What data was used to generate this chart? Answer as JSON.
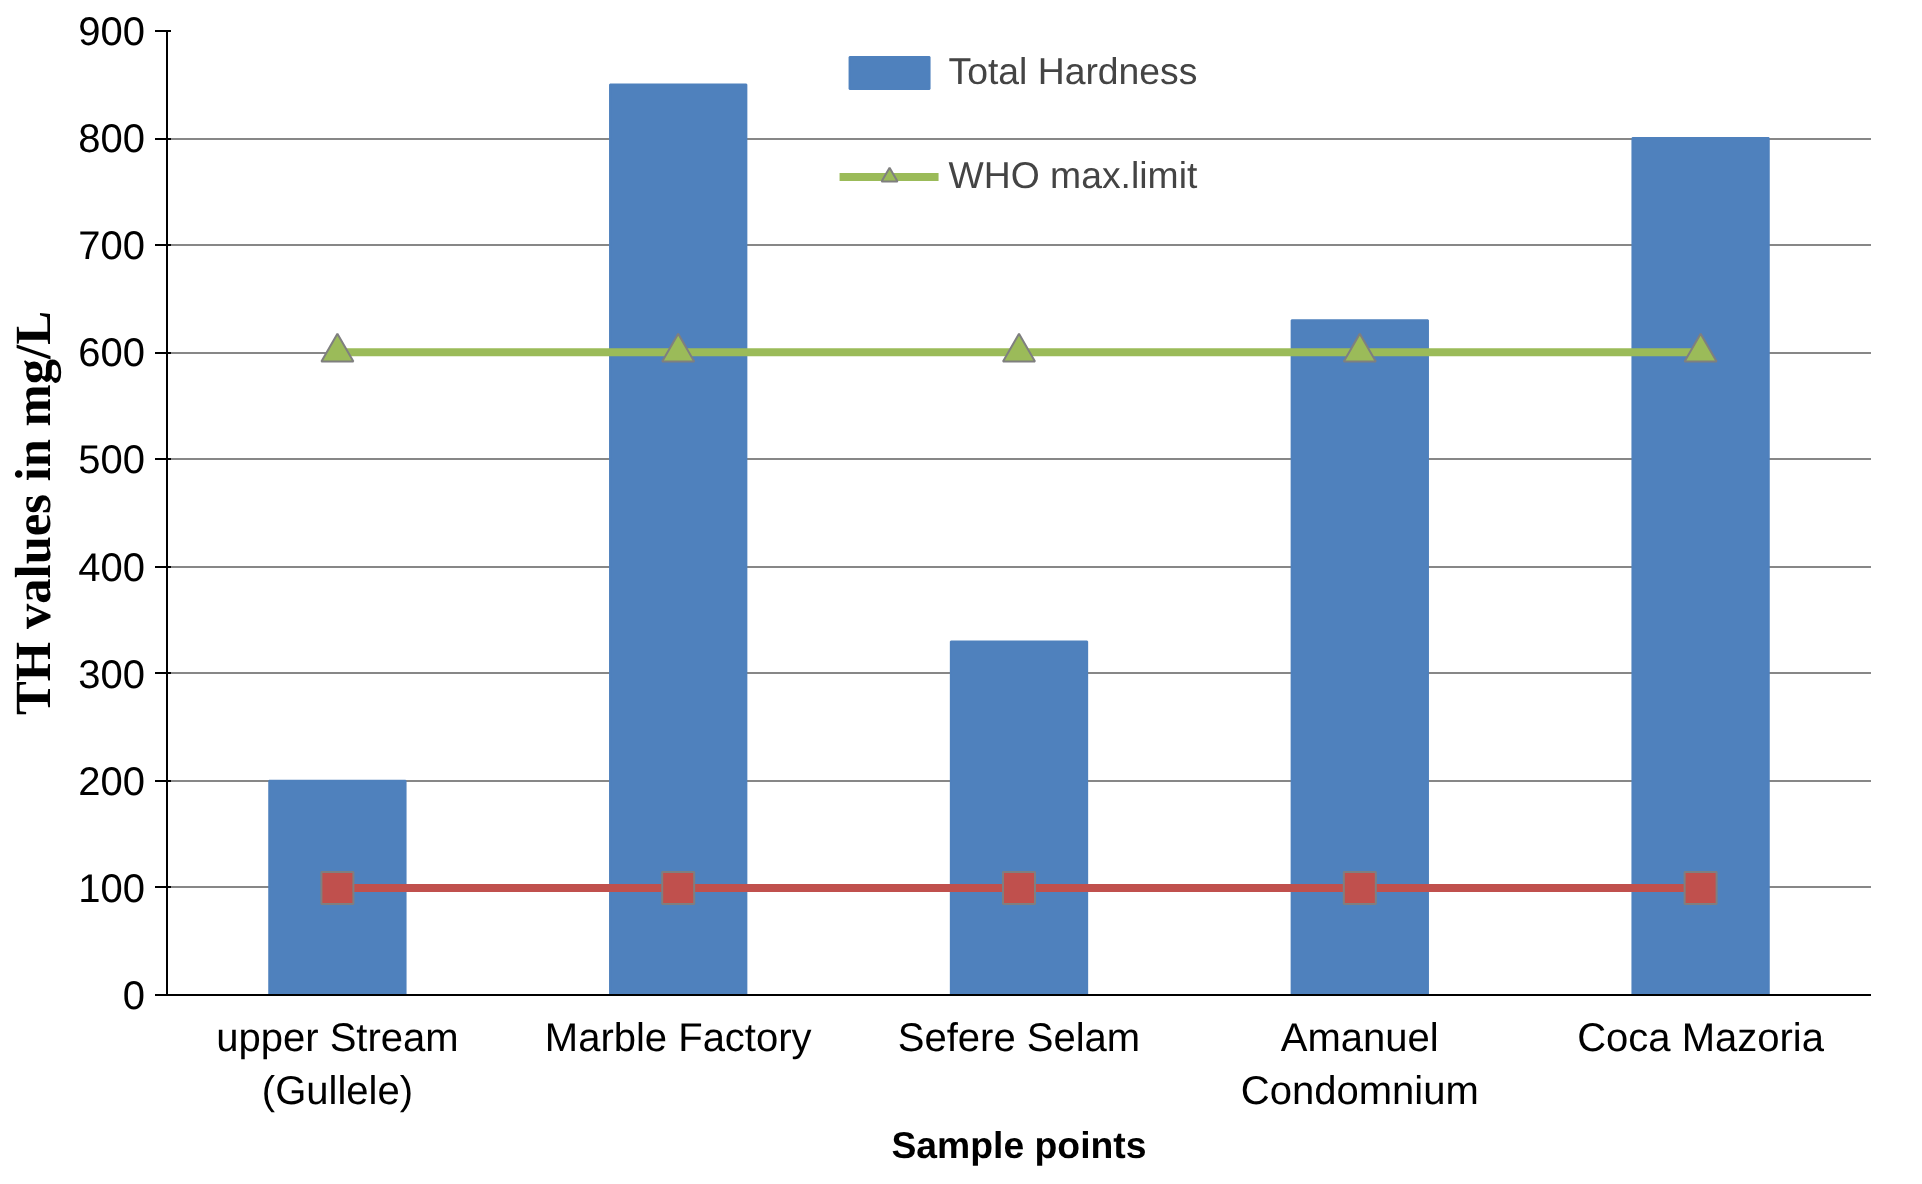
{
  "chart_data": {
    "type": "bar",
    "xlabel": "Sample points",
    "ylabel": "TH values in mg/L",
    "categories": [
      "upper Stream\n(Gullele)",
      "Marble Factory",
      "Sefere Selam",
      "Amanuel\nCondomnium",
      "Coca Mazoria"
    ],
    "series": [
      {
        "name": "Total Hardness",
        "color": "#4f81bd",
        "values": [
          200,
          850,
          330,
          630,
          800
        ]
      },
      {
        "name": "WHO max.limit",
        "type": "line",
        "color": "#9bbb59",
        "marker": "triangle",
        "values": [
          600,
          600,
          600,
          600,
          600
        ]
      },
      {
        "type": "line",
        "color": "#c0504d",
        "marker": "square",
        "values": [
          100,
          100,
          100,
          100,
          100
        ]
      }
    ],
    "ylim": [
      0,
      900
    ],
    "yticks": [
      0,
      100,
      200,
      300,
      400,
      500,
      600,
      700,
      800,
      900
    ],
    "grid": "y",
    "legend": "top"
  }
}
